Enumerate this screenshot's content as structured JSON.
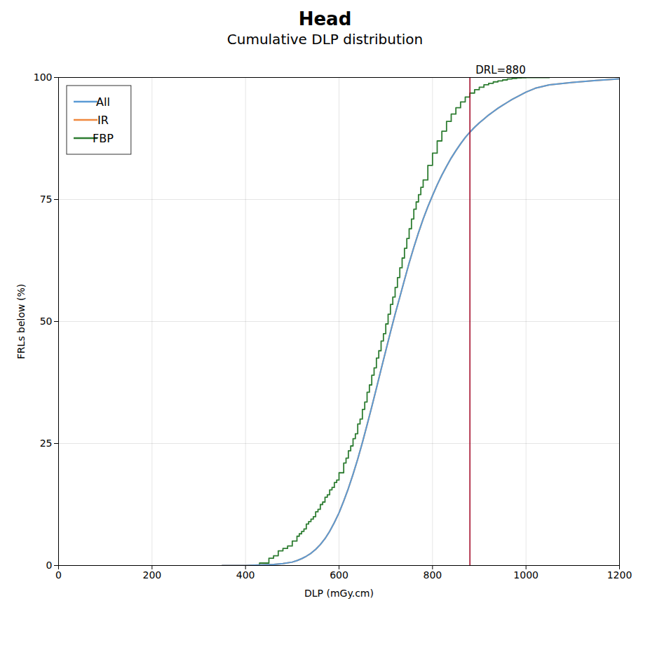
{
  "chart_data": {
    "type": "line",
    "title": "Head",
    "subtitle": "Cumulative DLP distribution",
    "xlabel": "DLP (mGy.cm)",
    "ylabel": "FRLs below (%)",
    "xlim": [
      0,
      1200
    ],
    "ylim": [
      0,
      100
    ],
    "xticks": [
      0,
      200,
      400,
      600,
      800,
      1000,
      1200
    ],
    "yticks": [
      0,
      25,
      50,
      75,
      100
    ],
    "grid": true,
    "legend": "upper left",
    "series": [
      {
        "name": "All",
        "color": "#5b9bd5",
        "type": "line",
        "x": [
          350,
          400,
          430,
          460,
          480,
          500,
          510,
          520,
          530,
          540,
          550,
          560,
          570,
          580,
          590,
          600,
          610,
          620,
          630,
          640,
          650,
          660,
          670,
          680,
          690,
          700,
          710,
          720,
          730,
          740,
          750,
          760,
          770,
          780,
          790,
          800,
          810,
          820,
          830,
          840,
          850,
          860,
          870,
          880,
          890,
          900,
          910,
          920,
          930,
          940,
          950,
          960,
          970,
          980,
          990,
          1000,
          1020,
          1050,
          1100,
          1150,
          1200
        ],
        "values": [
          0.0,
          0.0,
          0.1,
          0.2,
          0.4,
          0.7,
          1.0,
          1.4,
          1.9,
          2.5,
          3.3,
          4.3,
          5.5,
          7.0,
          8.8,
          10.8,
          13.2,
          15.8,
          18.7,
          21.8,
          25.2,
          28.8,
          32.5,
          36.3,
          40.2,
          44.0,
          47.8,
          51.5,
          55.0,
          58.5,
          62.0,
          65.2,
          68.2,
          71.0,
          73.5,
          75.8,
          78.0,
          80.0,
          81.8,
          83.5,
          85.0,
          86.4,
          87.7,
          88.8,
          89.8,
          90.7,
          91.5,
          92.3,
          93.0,
          93.7,
          94.3,
          94.9,
          95.5,
          96.0,
          96.5,
          97.0,
          97.8,
          98.5,
          99.0,
          99.4,
          99.7
        ]
      },
      {
        "name": "IR",
        "color": "#f0883e",
        "type": "line",
        "x": [
          350,
          400,
          430,
          460,
          480,
          500,
          510,
          520,
          530,
          540,
          550,
          560,
          570,
          580,
          590,
          600,
          610,
          620,
          630,
          640,
          650,
          660,
          670,
          680,
          690,
          700,
          710,
          720,
          730,
          740,
          750,
          760,
          770,
          780,
          790,
          800,
          810,
          820,
          830,
          840,
          850,
          860,
          870,
          880,
          890,
          900,
          910,
          920,
          930,
          940,
          950,
          960,
          970,
          980,
          990,
          1000,
          1020,
          1050,
          1100,
          1150,
          1200
        ],
        "values": [
          0.0,
          0.0,
          0.1,
          0.2,
          0.4,
          0.7,
          1.0,
          1.4,
          1.9,
          2.5,
          3.3,
          4.3,
          5.5,
          7.0,
          8.8,
          10.8,
          13.2,
          15.8,
          18.7,
          21.8,
          25.2,
          28.8,
          32.5,
          36.3,
          40.2,
          44.0,
          47.8,
          51.5,
          55.0,
          58.5,
          62.0,
          65.2,
          68.2,
          71.0,
          73.5,
          75.8,
          78.0,
          80.0,
          81.8,
          83.5,
          85.0,
          86.4,
          87.7,
          88.8,
          89.8,
          90.7,
          91.5,
          92.3,
          93.0,
          93.7,
          94.3,
          94.9,
          95.5,
          96.0,
          96.5,
          97.0,
          97.8,
          98.5,
          99.0,
          99.4,
          99.7
        ]
      },
      {
        "name": "FBP",
        "color": "#2e7d32",
        "type": "step",
        "x": [
          410,
          430,
          450,
          460,
          470,
          480,
          490,
          500,
          510,
          515,
          520,
          525,
          530,
          535,
          540,
          545,
          550,
          555,
          560,
          565,
          570,
          575,
          580,
          585,
          590,
          595,
          600,
          610,
          615,
          620,
          625,
          630,
          635,
          640,
          645,
          650,
          655,
          660,
          665,
          670,
          675,
          680,
          685,
          690,
          695,
          700,
          705,
          710,
          715,
          720,
          725,
          730,
          735,
          740,
          745,
          750,
          755,
          760,
          765,
          770,
          775,
          780,
          790,
          800,
          810,
          820,
          830,
          840,
          850,
          860,
          870,
          880,
          890,
          900,
          910,
          920,
          930,
          940,
          950,
          960,
          970,
          980,
          990,
          1000,
          1050
        ],
        "values": [
          0.0,
          0.5,
          1.5,
          2.0,
          3.0,
          3.5,
          4.0,
          5.0,
          6.0,
          6.5,
          7.0,
          7.5,
          8.5,
          9.0,
          9.5,
          10.0,
          11.0,
          11.5,
          12.5,
          13.0,
          14.0,
          14.5,
          15.5,
          16.0,
          17.0,
          17.5,
          19.0,
          21.0,
          22.0,
          23.5,
          24.5,
          26.0,
          27.0,
          29.0,
          30.0,
          32.0,
          33.5,
          35.5,
          37.0,
          39.0,
          40.5,
          42.5,
          44.0,
          46.0,
          47.5,
          49.5,
          51.5,
          53.5,
          55.0,
          57.0,
          59.0,
          61.0,
          63.0,
          65.0,
          67.0,
          69.0,
          71.0,
          73.0,
          74.5,
          76.0,
          77.5,
          79.0,
          82.0,
          84.5,
          87.0,
          89.0,
          91.0,
          92.5,
          93.8,
          95.0,
          96.0,
          96.8,
          97.5,
          98.0,
          98.5,
          98.8,
          99.1,
          99.3,
          99.5,
          99.7,
          99.8,
          99.9,
          99.95,
          100.0,
          100.0
        ]
      }
    ],
    "annotations": [
      {
        "type": "vline",
        "x": 880,
        "text": "DRL=880",
        "color": "#a00020"
      }
    ]
  }
}
